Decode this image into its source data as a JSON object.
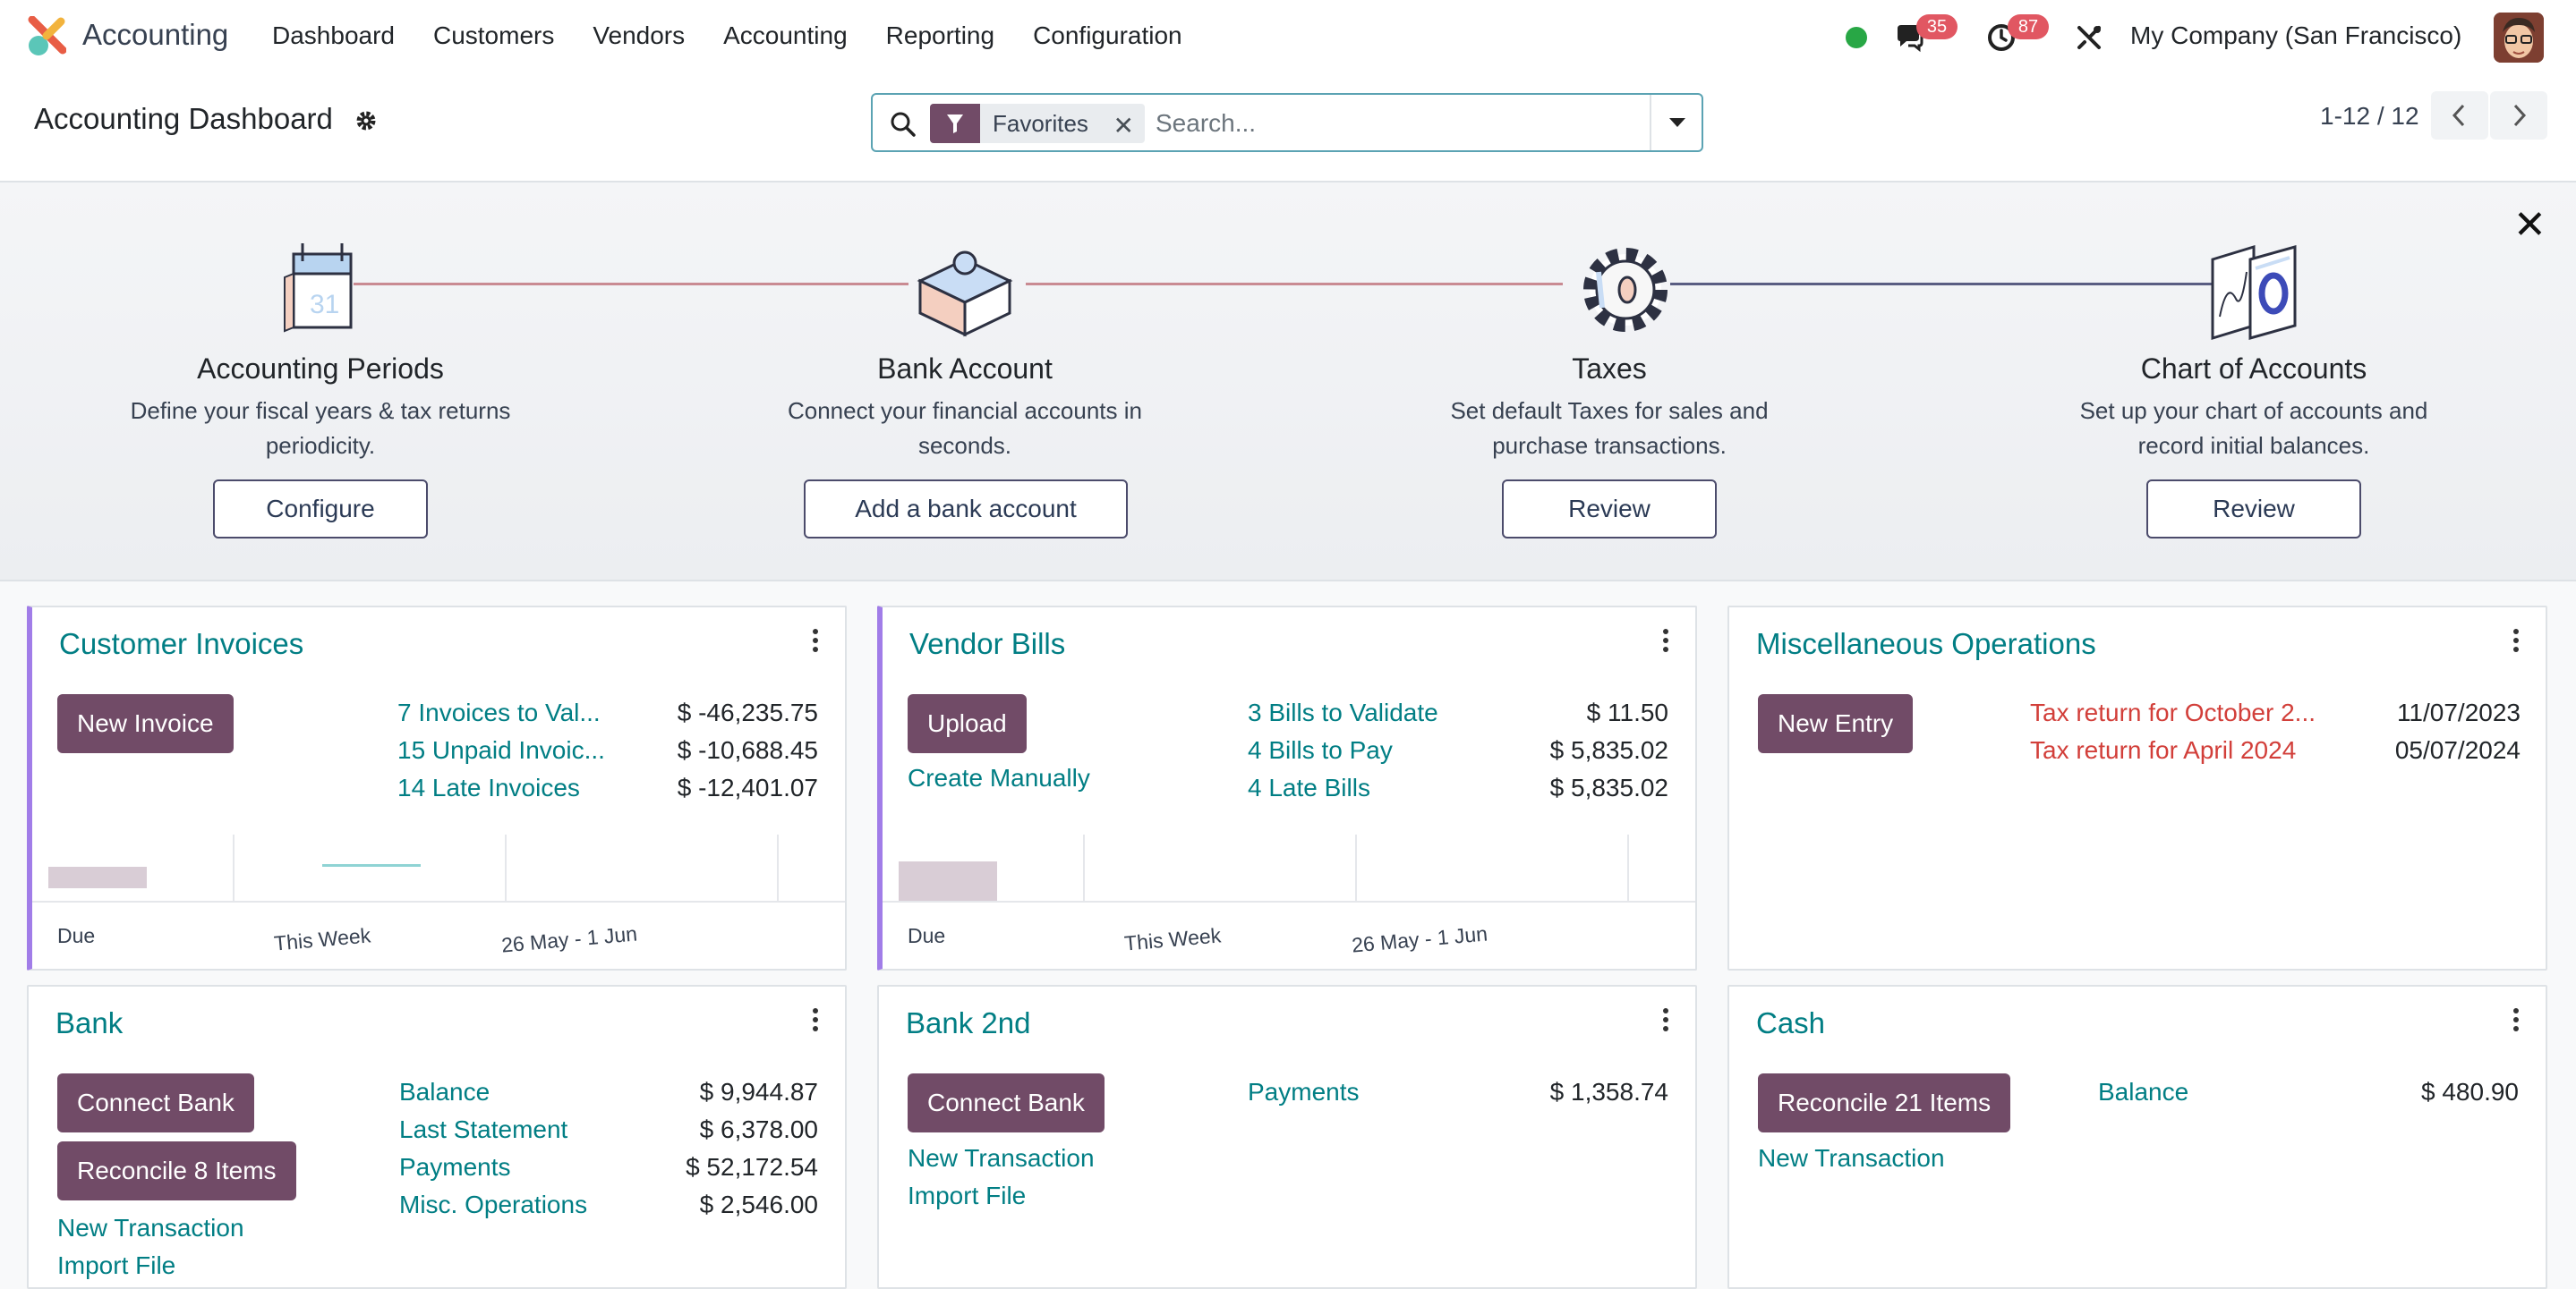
{
  "navbar": {
    "app_name": "Accounting",
    "menu": [
      "Dashboard",
      "Customers",
      "Vendors",
      "Accounting",
      "Reporting",
      "Configuration"
    ],
    "messages_count": "35",
    "activities_count": "87",
    "company": "My Company (San Francisco)",
    "status_color": "#28a745"
  },
  "control": {
    "title": "Accounting Dashboard",
    "facet_label": "Favorites",
    "search_placeholder": "Search...",
    "pager": "1-12 / 12"
  },
  "onboarding": {
    "steps": [
      {
        "title": "Accounting Periods",
        "desc": "Define your fiscal years & tax returns periodicity.",
        "button": "Configure",
        "illustration": "calendar-icon"
      },
      {
        "title": "Bank Account",
        "desc": "Connect your financial accounts in seconds.",
        "button": "Add a bank account",
        "illustration": "puzzle-icon"
      },
      {
        "title": "Taxes",
        "desc": "Set default Taxes for sales and purchase transactions.",
        "button": "Review",
        "illustration": "cog-icon"
      },
      {
        "title": "Chart of Accounts",
        "desc": "Set up your chart of accounts and record initial balances.",
        "button": "Review",
        "illustration": "charts-icon"
      }
    ]
  },
  "cards": {
    "customer_invoices": {
      "title": "Customer Invoices",
      "button": "New Invoice",
      "rows": [
        {
          "label": "7 Invoices to Val...",
          "amount": "$ -46,235.75"
        },
        {
          "label": "15 Unpaid Invoic...",
          "amount": "$ -10,688.45"
        },
        {
          "label": "14 Late Invoices",
          "amount": "$ -12,401.07"
        }
      ],
      "graph_labels": [
        "Due",
        "This Week",
        "26 May - 1 Jun"
      ]
    },
    "vendor_bills": {
      "title": "Vendor Bills",
      "button": "Upload",
      "secondary_link": "Create Manually",
      "rows": [
        {
          "label": "3 Bills to Validate",
          "amount": "$ 11.50"
        },
        {
          "label": "4 Bills to Pay",
          "amount": "$ 5,835.02"
        },
        {
          "label": "4 Late Bills",
          "amount": "$ 5,835.02"
        }
      ],
      "graph_labels": [
        "Due",
        "This Week",
        "26 May - 1 Jun"
      ]
    },
    "misc_operations": {
      "title": "Miscellaneous Operations",
      "button": "New Entry",
      "rows": [
        {
          "label": "Tax return for October 2...",
          "date": "11/07/2023"
        },
        {
          "label": "Tax return for April 2024",
          "date": "05/07/2024"
        }
      ]
    },
    "bank": {
      "title": "Bank",
      "button": "Connect Bank",
      "button2": "Reconcile 8 Items",
      "links": [
        "New Transaction",
        "Import File"
      ],
      "rows": [
        {
          "label": "Balance",
          "amount": "$ 9,944.87"
        },
        {
          "label": "Last Statement",
          "amount": "$ 6,378.00"
        },
        {
          "label": "Payments",
          "amount": "$ 52,172.54"
        },
        {
          "label": "Misc. Operations",
          "amount": "$ 2,546.00"
        }
      ]
    },
    "bank_2nd": {
      "title": "Bank 2nd",
      "button": "Connect Bank",
      "links": [
        "New Transaction",
        "Import File"
      ],
      "rows": [
        {
          "label": "Payments",
          "amount": "$ 1,358.74"
        }
      ]
    },
    "cash": {
      "title": "Cash",
      "button": "Reconcile 21 Items",
      "links": [
        "New Transaction"
      ],
      "rows": [
        {
          "label": "Balance",
          "amount": "$ 480.90"
        }
      ]
    }
  },
  "colors": {
    "primary": "#714b67",
    "link": "#017e84",
    "badge": "#e15762",
    "alert": "#d23f3a",
    "card_accent": "#a17de8"
  }
}
